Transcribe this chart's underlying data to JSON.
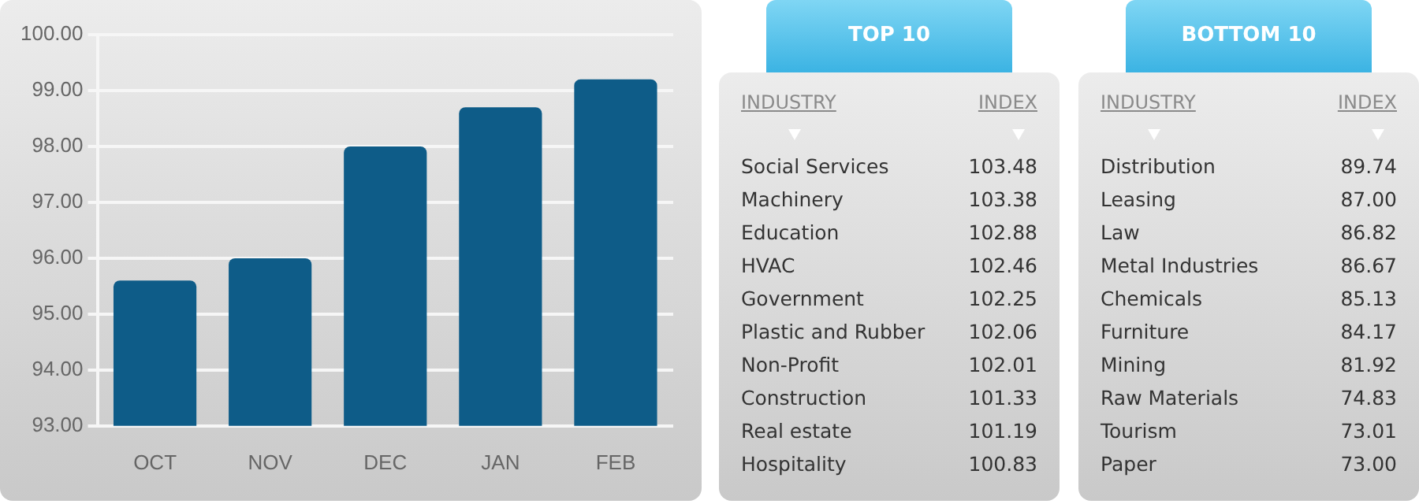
{
  "chart_data": [
    {
      "type": "bar",
      "categories": [
        "OCT",
        "NOV",
        "DEC",
        "JAN",
        "FEB"
      ],
      "values": [
        95.6,
        96.0,
        98.0,
        98.7,
        99.2
      ],
      "color": "#0e5c88",
      "ylim": [
        93,
        100
      ],
      "yticks": [
        {
          "value": 93,
          "label": "93.00"
        },
        {
          "value": 94,
          "label": "94.00"
        },
        {
          "value": 95,
          "label": "95.00"
        },
        {
          "value": 96,
          "label": "96.00"
        },
        {
          "value": 97,
          "label": "97.00"
        },
        {
          "value": 98,
          "label": "98.00"
        },
        {
          "value": 99,
          "label": "99.00"
        },
        {
          "value": 100,
          "label": "100.00"
        }
      ],
      "grid": "y"
    },
    {
      "type": "other",
      "title": "TOP 10",
      "xlabel": "INDUSTRY",
      "ylabel": "INDEX",
      "categories": [
        "Social Services",
        "Machinery",
        "Education",
        "HVAC",
        "Government",
        "Plastic and Rubber",
        "Non-Profit",
        "Construction",
        "Real estate",
        "Hospitality"
      ],
      "values": [
        103.48,
        103.38,
        102.88,
        102.46,
        102.25,
        102.06,
        102.01,
        101.33,
        101.19,
        100.83
      ],
      "value_labels": [
        "103.48",
        "103.38",
        "102.88",
        "102.46",
        "102.25",
        "102.06",
        "102.01",
        "101.33",
        "101.19",
        "100.83"
      ]
    },
    {
      "type": "other",
      "title": "BOTTOM 10",
      "xlabel": "INDUSTRY",
      "ylabel": "INDEX",
      "categories": [
        "Distribution",
        "Leasing",
        "Law",
        "Metal Industries",
        "Chemicals",
        "Furniture",
        "Mining",
        "Raw Materials",
        "Tourism",
        "Paper"
      ],
      "values": [
        89.74,
        87.0,
        86.82,
        86.67,
        85.13,
        84.17,
        81.92,
        74.83,
        73.01,
        73.0
      ],
      "value_labels": [
        "89.74",
        "87.00",
        "86.82",
        "86.67",
        "85.13",
        "84.17",
        "81.92",
        "74.83",
        "73.01",
        "73.00"
      ]
    }
  ]
}
